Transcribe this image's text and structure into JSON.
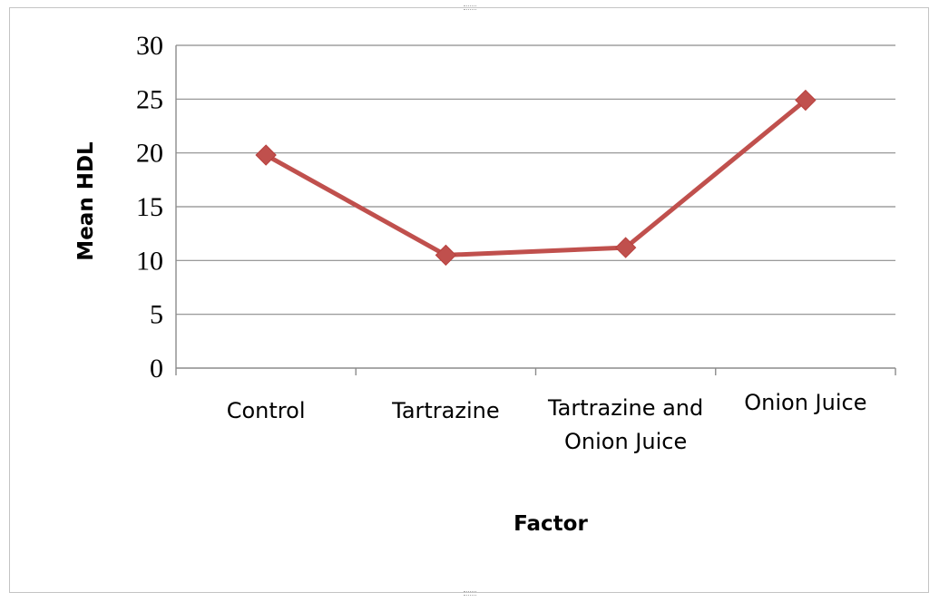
{
  "chart_data": {
    "type": "line",
    "title": "",
    "xlabel": "Factor",
    "ylabel": "Mean HDL",
    "ylim": [
      0,
      30
    ],
    "yticks": [
      "0",
      "5",
      "10",
      "15",
      "20",
      "25",
      "30"
    ],
    "categories": [
      [
        "Control"
      ],
      [
        "Tartrazine"
      ],
      [
        "Tartrazine and",
        "Onion Juice"
      ],
      [
        "Onion Juice"
      ]
    ],
    "series": [
      {
        "values": [
          19.8,
          10.5,
          11.2,
          24.9
        ],
        "color": "#c0504d",
        "marker": "diamond"
      }
    ],
    "grid": true,
    "legend": "none"
  }
}
